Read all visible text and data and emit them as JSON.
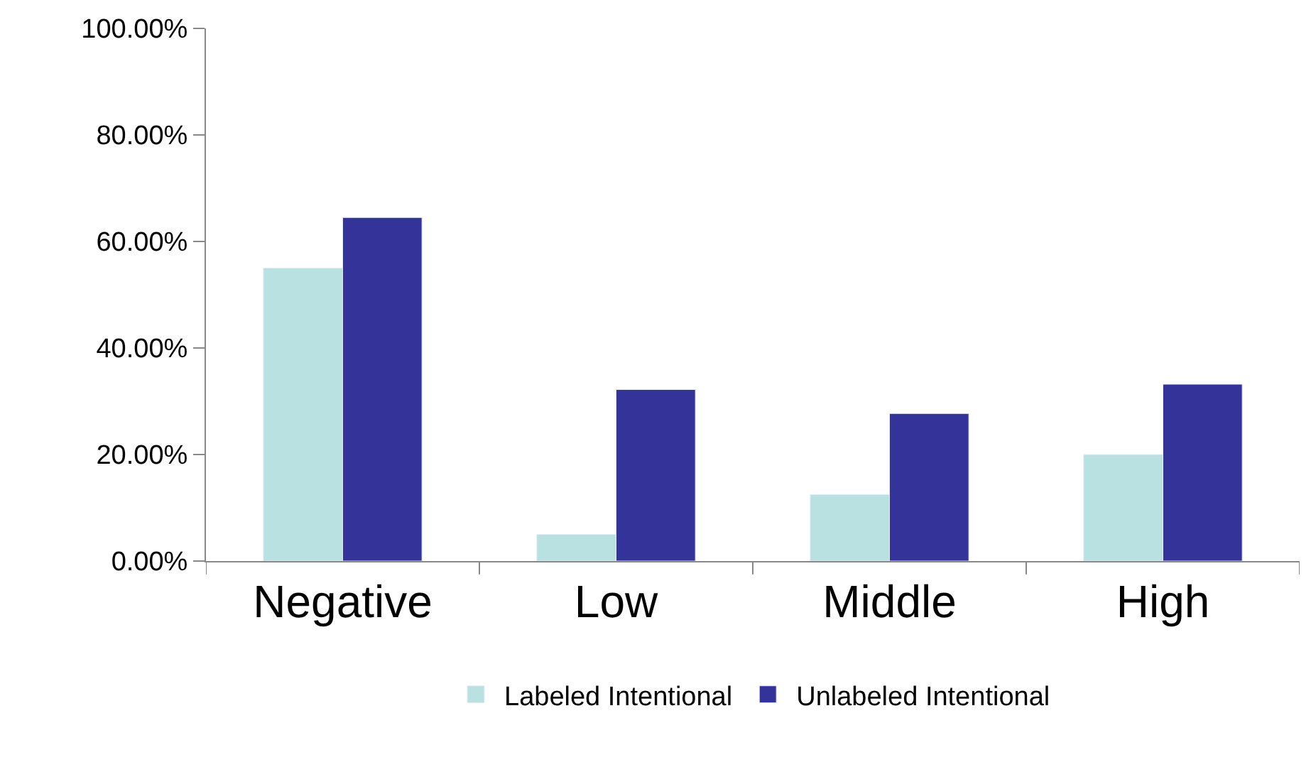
{
  "chart_data": {
    "type": "bar",
    "categories": [
      "Negative",
      "Low",
      "Middle",
      "High"
    ],
    "series": [
      {
        "name": "Labeled Intentional",
        "color": "#b9e1e1",
        "values": [
          55,
          5,
          12.5,
          20
        ]
      },
      {
        "name": "Unlabeled Intentional",
        "color": "#333399",
        "values": [
          64.5,
          32.2,
          27.7,
          33.2
        ]
      }
    ],
    "ylim": [
      0,
      100
    ],
    "yticks": [
      {
        "value": 0,
        "label": "0.00%"
      },
      {
        "value": 20,
        "label": "20.00%"
      },
      {
        "value": 40,
        "label": "40.00%"
      },
      {
        "value": 60,
        "label": "60.00%"
      },
      {
        "value": 80,
        "label": "80.00%"
      },
      {
        "value": 100,
        "label": "100.00%"
      }
    ],
    "grid": false,
    "legend": "bottom"
  }
}
